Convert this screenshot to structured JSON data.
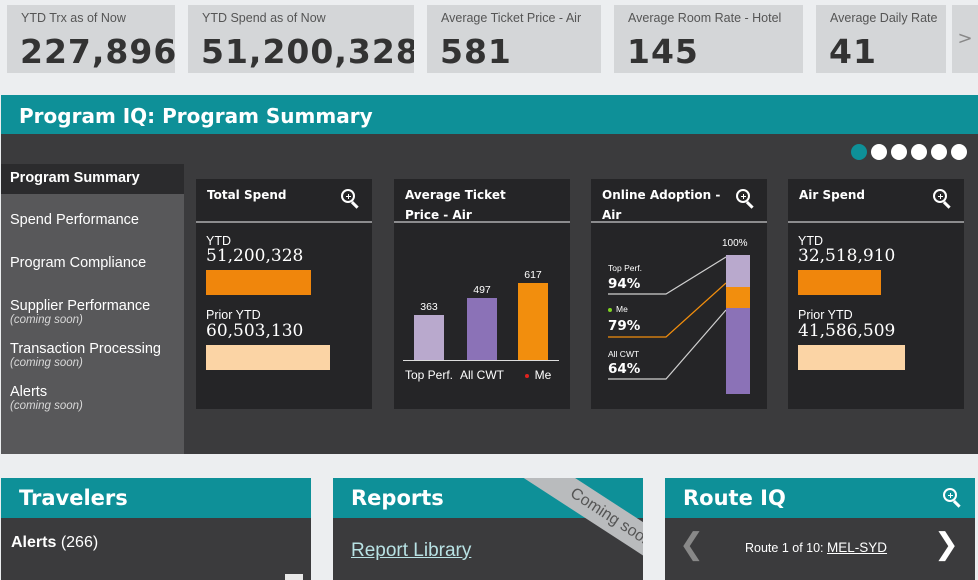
{
  "kpis": [
    {
      "label": "YTD Trx as of Now",
      "value": "227,896"
    },
    {
      "label": "YTD Spend as of Now",
      "value": "51,200,328"
    },
    {
      "label": "Average Ticket Price - Air",
      "value": "581"
    },
    {
      "label": "Average Room Rate - Hotel",
      "value": "145"
    },
    {
      "label": "Average Daily Rate",
      "value": "41"
    }
  ],
  "kpi_next_glyph": ">",
  "program_iq": {
    "title": "Program IQ: Program Summary",
    "nav": [
      {
        "label": "Program Summary",
        "sub": ""
      },
      {
        "label": "Spend Performance",
        "sub": ""
      },
      {
        "label": "Program Compliance",
        "sub": ""
      },
      {
        "label": "Supplier Performance",
        "sub": "(coming soon)"
      },
      {
        "label": "Transaction Processing",
        "sub": "(coming soon)"
      },
      {
        "label": "Alerts",
        "sub": "(coming soon)"
      }
    ],
    "carousel": {
      "count": 6,
      "active_index": 0
    }
  },
  "cards": {
    "total_spend": {
      "title": "Total Spend",
      "ytd_label": "YTD",
      "ytd_value": "51,200,328",
      "prior_label": "Prior YTD",
      "prior_value": "60,503,130"
    },
    "avg_ticket": {
      "title": "Average Ticket Price - Air",
      "bars": [
        {
          "category": "Top Perf.",
          "value": 363,
          "label": "363",
          "color": "#b9a9cd"
        },
        {
          "category": "All CWT",
          "value": 497,
          "label": "497",
          "color": "#8b72b7"
        },
        {
          "category": "Me",
          "value": 617,
          "label": "617",
          "color": "#f28e0d"
        }
      ],
      "me_dot_color": "#e0221f"
    },
    "online_adoption": {
      "title": "Online Adoption - Air",
      "top_label": "Top Perf.",
      "top_value": "94%",
      "top_fraction": 0.94,
      "me_label": "Me",
      "me_value": "79%",
      "me_fraction": 0.79,
      "all_label": "All CWT",
      "all_value": "64%",
      "all_fraction": 0.64,
      "max_label": "100%",
      "me_dot_color": "#7ed321"
    },
    "air_spend": {
      "title": "Air Spend",
      "ytd_label": "YTD",
      "ytd_value": "32,518,910",
      "prior_label": "Prior YTD",
      "prior_value": "41,586,509"
    }
  },
  "colors": {
    "teal": "#0e9098",
    "ytd_bar": "#f0860c",
    "prior_bar": "#fbd4a5"
  },
  "travelers": {
    "title": "Travelers",
    "alerts_label": "Alerts",
    "alerts_count": "(266)"
  },
  "reports": {
    "title": "Reports",
    "ribbon": "Coming soon",
    "link": "Report Library"
  },
  "route_iq": {
    "title": "Route IQ",
    "route_text": "Route 1 of 10:",
    "route_link": "MEL-SYD"
  },
  "icons": [
    "zoom-icon",
    "chevron-right-icon",
    "chevron-left-icon"
  ]
}
